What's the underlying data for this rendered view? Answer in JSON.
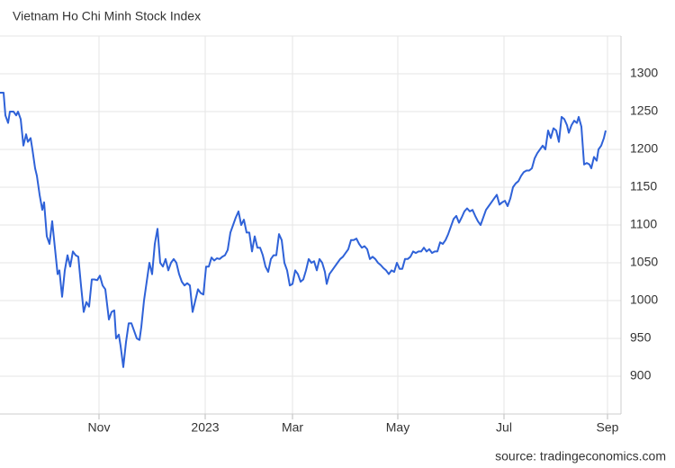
{
  "chart_data": {
    "type": "line",
    "title": "Vietnam Ho Chi Minh Stock Index",
    "source": "source: tradingeconomics.com",
    "x": [
      0,
      4,
      6,
      9,
      11,
      15,
      18,
      20,
      23,
      26,
      29,
      31,
      34,
      36,
      39,
      41,
      44,
      47,
      49,
      52,
      55,
      58,
      61,
      64,
      66,
      69,
      72,
      75,
      78,
      81,
      84,
      87,
      90,
      93,
      96,
      99,
      102,
      105,
      108,
      111,
      114,
      117,
      119,
      121,
      124,
      127,
      129,
      132,
      134,
      137,
      140,
      143,
      146,
      149,
      152,
      155,
      157,
      160,
      163,
      166,
      169,
      172,
      175,
      178,
      181,
      184,
      187,
      190,
      193,
      196,
      199,
      202,
      205,
      208,
      211,
      214,
      217,
      220,
      223,
      226,
      229,
      232,
      235,
      238,
      241,
      244,
      247,
      250,
      253,
      256,
      259,
      262,
      265,
      268,
      271,
      274,
      277,
      280,
      283,
      286,
      289,
      292,
      295,
      298,
      301,
      304,
      307,
      310,
      313,
      316,
      319,
      322,
      325,
      328,
      331,
      334,
      337,
      340,
      343,
      346,
      349,
      352,
      355,
      358,
      361,
      363,
      366,
      369,
      372,
      375,
      378,
      381,
      384,
      387,
      390,
      393,
      396,
      399,
      402,
      405,
      408,
      411,
      414,
      417,
      420,
      423,
      426,
      429,
      432,
      435,
      438,
      441,
      444,
      447,
      450,
      453,
      456,
      459,
      462,
      465,
      468,
      471,
      474,
      477,
      480,
      483,
      486,
      489,
      492,
      495,
      498,
      501,
      504,
      507,
      510,
      513,
      516,
      519,
      522,
      525,
      528,
      531,
      534,
      537,
      540,
      543,
      546,
      549,
      552,
      555,
      558,
      561,
      564,
      567,
      570,
      573,
      576,
      579,
      582,
      585,
      588,
      591,
      594,
      597,
      600,
      603,
      606,
      609,
      612,
      615,
      618,
      621,
      624,
      627,
      630,
      632,
      635,
      638,
      641,
      643,
      646,
      649,
      652,
      655,
      657,
      660,
      663,
      665,
      668,
      671,
      673
    ],
    "series": [
      {
        "name": "Vietnam Ho Chi Minh Stock Index",
        "color": "#2f62d8",
        "values": [
          1275,
          1275,
          1245,
          1235,
          1250,
          1250,
          1245,
          1250,
          1240,
          1205,
          1220,
          1210,
          1215,
          1200,
          1175,
          1165,
          1140,
          1120,
          1130,
          1085,
          1075,
          1105,
          1070,
          1035,
          1040,
          1005,
          1040,
          1060,
          1045,
          1065,
          1060,
          1058,
          1020,
          985,
          998,
          992,
          1028,
          1028,
          1027,
          1033,
          1020,
          1015,
          995,
          975,
          985,
          987,
          950,
          955,
          940,
          912,
          945,
          970,
          970,
          960,
          950,
          948,
          965,
          1000,
          1025,
          1050,
          1035,
          1075,
          1095,
          1050,
          1045,
          1055,
          1040,
          1050,
          1055,
          1050,
          1035,
          1025,
          1020,
          1023,
          1020,
          985,
          1000,
          1015,
          1010,
          1008,
          1045,
          1045,
          1057,
          1053,
          1056,
          1055,
          1058,
          1060,
          1067,
          1090,
          1100,
          1110,
          1118,
          1100,
          1107,
          1090,
          1090,
          1065,
          1085,
          1070,
          1070,
          1060,
          1045,
          1038,
          1055,
          1060,
          1060,
          1088,
          1080,
          1050,
          1040,
          1020,
          1022,
          1040,
          1035,
          1025,
          1028,
          1040,
          1055,
          1050,
          1052,
          1040,
          1055,
          1050,
          1038,
          1022,
          1035,
          1040,
          1045,
          1050,
          1055,
          1058,
          1063,
          1068,
          1080,
          1080,
          1082,
          1075,
          1070,
          1072,
          1068,
          1055,
          1058,
          1055,
          1050,
          1047,
          1043,
          1040,
          1035,
          1040,
          1038,
          1050,
          1042,
          1042,
          1055,
          1055,
          1058,
          1065,
          1063,
          1065,
          1065,
          1070,
          1065,
          1068,
          1063,
          1065,
          1065,
          1077,
          1075,
          1080,
          1088,
          1098,
          1108,
          1112,
          1103,
          1110,
          1118,
          1122,
          1118,
          1120,
          1112,
          1105,
          1100,
          1110,
          1120,
          1125,
          1130,
          1135,
          1140,
          1127,
          1130,
          1132,
          1125,
          1135,
          1150,
          1155,
          1158,
          1165,
          1170,
          1172,
          1172,
          1175,
          1188,
          1195,
          1200,
          1205,
          1200,
          1225,
          1215,
          1228,
          1225,
          1210,
          1243,
          1240,
          1232,
          1222,
          1232,
          1238,
          1235,
          1243,
          1230,
          1180,
          1182,
          1180,
          1175,
          1190,
          1185,
          1200,
          1205,
          1215,
          1225
        ]
      }
    ],
    "xlim": [
      0,
      690
    ],
    "xticks": [
      {
        "value": 110,
        "label": "Nov"
      },
      {
        "value": 228,
        "label": "2023"
      },
      {
        "value": 325,
        "label": "Mar"
      },
      {
        "value": 442,
        "label": "May"
      },
      {
        "value": 560,
        "label": "Jul"
      },
      {
        "value": 675,
        "label": "Sep"
      }
    ],
    "ylim": [
      850,
      1350
    ],
    "yticks": [
      900,
      950,
      1000,
      1050,
      1100,
      1150,
      1200,
      1250,
      1300
    ],
    "grid": true
  }
}
